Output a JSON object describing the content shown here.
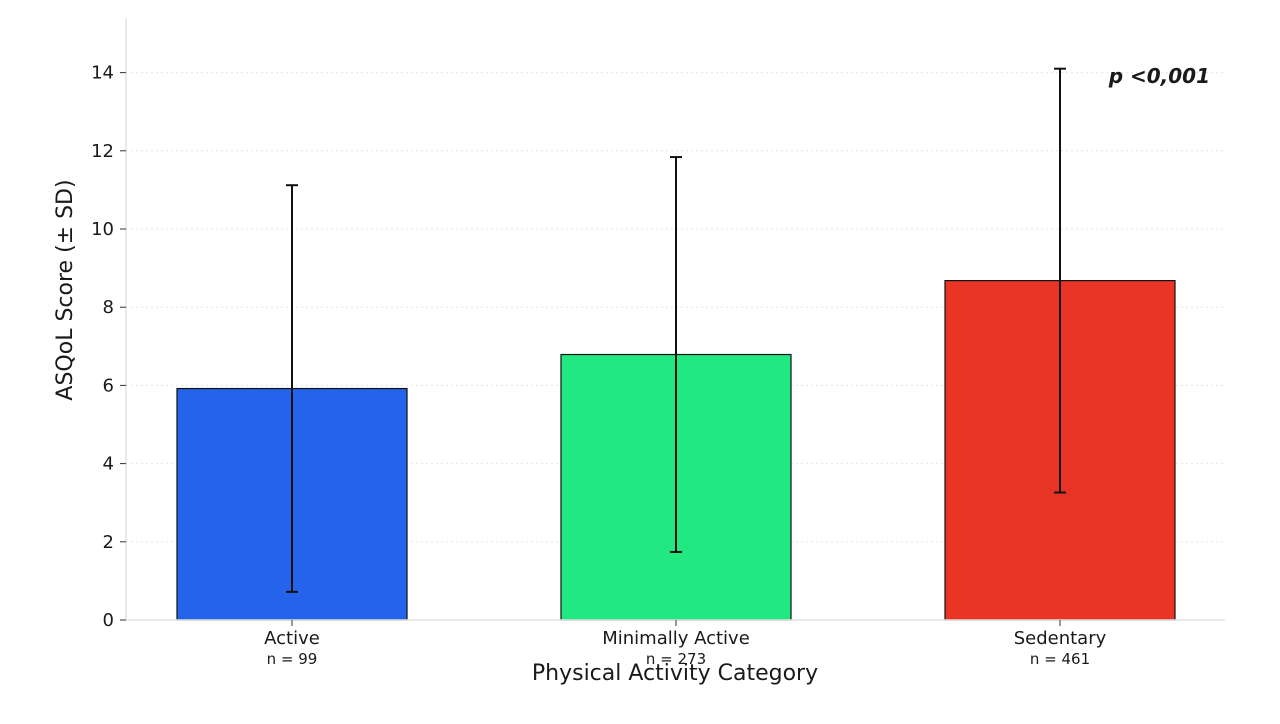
{
  "chart_data": {
    "type": "bar",
    "categories": [
      "Active",
      "Minimally Active",
      "Sedentary"
    ],
    "sample_sizes": [
      "n = 99",
      "n = 273",
      "n = 461"
    ],
    "values": [
      5.92,
      6.79,
      8.68
    ],
    "error_sd": [
      5.2,
      5.05,
      5.42
    ],
    "colors": [
      "#2563eb",
      "#22e882",
      "#e83526"
    ],
    "xlabel": "Physical Activity Category",
    "ylabel": "ASQoL Score (± SD)",
    "ylim": [
      0,
      15.4
    ],
    "yticks": [
      0,
      2,
      4,
      6,
      8,
      10,
      12,
      14
    ],
    "grid": "horizontal-dotted",
    "annotation": "p <0,001"
  }
}
